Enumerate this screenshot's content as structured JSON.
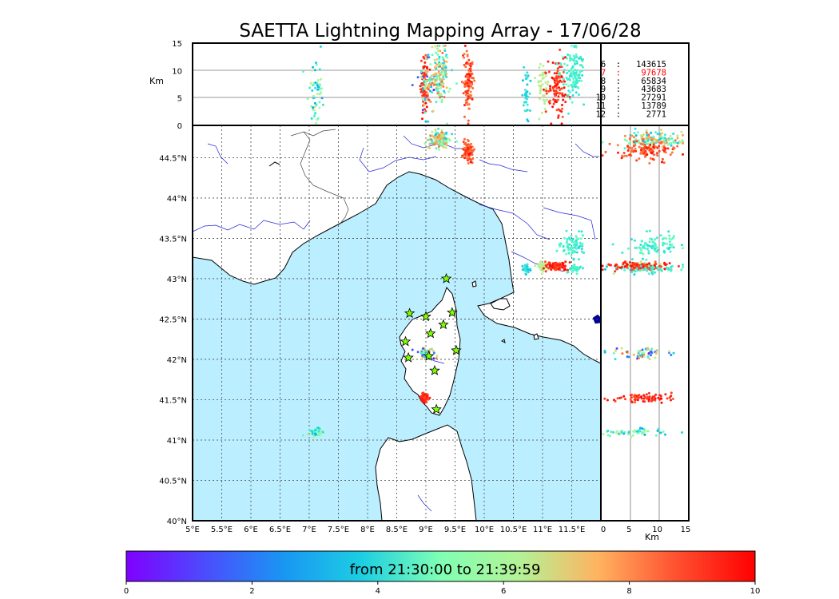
{
  "chart_data": {
    "type": "scatter",
    "title": "SAETTA Lightning Mapping Array - 17/06/28",
    "colorbar": {
      "label": "from 21:30:00 to 21:39:59",
      "range": [
        0,
        10
      ],
      "ticks": [
        "0",
        "2",
        "4",
        "6",
        "8",
        "10"
      ],
      "colormap": "rainbow"
    },
    "map": {
      "lon_range": [
        5.0,
        12.0
      ],
      "lat_range": [
        40.0,
        44.9
      ],
      "lon_ticks": [
        "5°E",
        "5.5°E",
        "6°E",
        "6.5°E",
        "7°E",
        "7.5°E",
        "8°E",
        "8.5°E",
        "9°E",
        "9.5°E",
        "10°E",
        "10.5°E",
        "11°E",
        "11.5°E"
      ],
      "lat_ticks": [
        "40°N",
        "40.5°N",
        "41°N",
        "41.5°N",
        "42°N",
        "42.5°N",
        "43°N",
        "43.5°N",
        "44°N",
        "44.5°N"
      ],
      "grid": true,
      "sea_color": "#bbeeff"
    },
    "top_panel": {
      "ylabel": "Km",
      "y_ticks": [
        "0",
        "5",
        "10",
        "15"
      ],
      "y_range": [
        0,
        15
      ]
    },
    "side_panel": {
      "xlabel": "Km",
      "x_ticks": [
        "0",
        "5",
        "10",
        "15"
      ],
      "x_range": [
        0,
        15
      ]
    },
    "legend": [
      {
        "label": "6  :   143615",
        "color": "#000000"
      },
      {
        "label": "7  :    97678",
        "color": "#ff0000"
      },
      {
        "label": "8  :    65834",
        "color": "#000000"
      },
      {
        "label": "9  :    43683",
        "color": "#000000"
      },
      {
        "label": "10  :    27291",
        "color": "#000000"
      },
      {
        "label": "11  :    13789",
        "color": "#000000"
      },
      {
        "label": "12  :     2771",
        "color": "#000000"
      }
    ],
    "lightning_clusters": [
      {
        "lon": 8.98,
        "lat": 41.52,
        "alt": 7.5,
        "rx": 0.06,
        "ry": 0.05,
        "t0": 8.8,
        "t1": 10,
        "n": 70
      },
      {
        "lon": 9.0,
        "lat": 42.08,
        "alt": 7,
        "rx": 0.12,
        "ry": 0.06,
        "t0": 0.2,
        "t1": 9.6,
        "n": 60
      },
      {
        "lon": 7.12,
        "lat": 41.09,
        "alt": 6,
        "rx": 0.12,
        "ry": 0.04,
        "t0": 1.5,
        "t1": 6.5,
        "n": 55
      },
      {
        "lon": 9.22,
        "lat": 44.72,
        "alt": 9,
        "rx": 0.17,
        "ry": 0.09,
        "t0": 2.5,
        "t1": 8.8,
        "n": 160
      },
      {
        "lon": 9.73,
        "lat": 44.59,
        "alt": 8,
        "rx": 0.09,
        "ry": 0.1,
        "t0": 8.3,
        "t1": 10,
        "n": 110
      },
      {
        "lon": 10.73,
        "lat": 43.12,
        "alt": 6,
        "rx": 0.06,
        "ry": 0.05,
        "t0": 2.6,
        "t1": 3.8,
        "n": 35
      },
      {
        "lon": 11.0,
        "lat": 43.15,
        "alt": 7,
        "rx": 0.1,
        "ry": 0.05,
        "t0": 5.8,
        "t1": 6.6,
        "n": 45
      },
      {
        "lon": 11.25,
        "lat": 43.15,
        "alt": 7,
        "rx": 0.16,
        "ry": 0.05,
        "t0": 8.8,
        "t1": 10,
        "n": 110
      },
      {
        "lon": 11.52,
        "lat": 43.42,
        "alt": 9,
        "rx": 0.17,
        "ry": 0.13,
        "t0": 3.2,
        "t1": 4.8,
        "n": 90
      },
      {
        "lon": 11.55,
        "lat": 43.12,
        "alt": 10,
        "rx": 0.1,
        "ry": 0.05,
        "t0": 3.5,
        "t1": 4.5,
        "n": 35
      }
    ],
    "stations": [
      {
        "lon": 9.35,
        "lat": 43.0
      },
      {
        "lon": 8.72,
        "lat": 42.57
      },
      {
        "lon": 9.0,
        "lat": 42.53
      },
      {
        "lon": 9.45,
        "lat": 42.58
      },
      {
        "lon": 9.3,
        "lat": 42.43
      },
      {
        "lon": 9.08,
        "lat": 42.32
      },
      {
        "lon": 8.65,
        "lat": 42.22
      },
      {
        "lon": 9.52,
        "lat": 42.11
      },
      {
        "lon": 9.05,
        "lat": 42.04
      },
      {
        "lon": 8.7,
        "lat": 42.02
      },
      {
        "lon": 9.15,
        "lat": 41.86
      },
      {
        "lon": 9.18,
        "lat": 41.38
      }
    ]
  }
}
